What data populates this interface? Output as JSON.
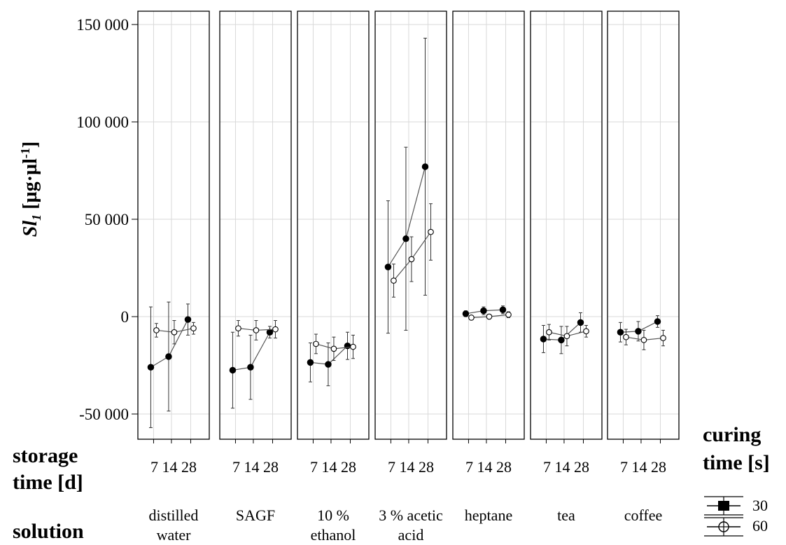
{
  "chart_data": {
    "type": "line",
    "ylabel_main": "Sl",
    "ylabel_sub": "1",
    "ylabel_unit": " [µg·µl",
    "ylabel_exp": "-1",
    "ylabel_close": "]",
    "y_ticks": [
      "150 000",
      "100 000",
      "50 000",
      "0",
      "-50 000"
    ],
    "y_tick_values": [
      150000,
      100000,
      50000,
      0,
      -50000
    ],
    "ylim": [
      -62000,
      156000
    ],
    "grid": true,
    "x": [
      7,
      14,
      28
    ],
    "x_tick_text": "7 14 28",
    "storage_label_line1": "storage",
    "storage_label_line2": "time [d]",
    "solution_label": "solution",
    "legend": {
      "title_line1": "curing",
      "title_line2": "time [s]",
      "entries": [
        {
          "label": "30",
          "marker": "filled-circle"
        },
        {
          "label": "60",
          "marker": "open-circle"
        }
      ]
    },
    "panels": [
      {
        "solution": [
          "distilled",
          "water"
        ],
        "series": [
          {
            "curing_time": "30",
            "values": [
              -26000,
              -20500,
              -1500
            ],
            "error": [
              31000,
              28000,
              8000
            ]
          },
          {
            "curing_time": "60",
            "values": [
              -7000,
              -8000,
              -6000
            ],
            "error": [
              3500,
              6000,
              3000
            ]
          }
        ]
      },
      {
        "solution": [
          "SAGF"
        ],
        "series": [
          {
            "curing_time": "30",
            "values": [
              -27500,
              -26000,
              -8000
            ],
            "error": [
              19500,
              16500,
              3000
            ]
          },
          {
            "curing_time": "60",
            "values": [
              -6000,
              -7000,
              -6500
            ],
            "error": [
              4000,
              5000,
              4500
            ]
          }
        ]
      },
      {
        "solution": [
          "10 %",
          "ethanol"
        ],
        "series": [
          {
            "curing_time": "30",
            "values": [
              -23500,
              -24500,
              -15000
            ],
            "error": [
              10000,
              11000,
              7000
            ]
          },
          {
            "curing_time": "60",
            "values": [
              -14000,
              -16500,
              -15500
            ],
            "error": [
              5000,
              6000,
              6000
            ]
          }
        ]
      },
      {
        "solution": [
          "3 % acetic",
          "acid"
        ],
        "series": [
          {
            "curing_time": "30",
            "values": [
              25500,
              40000,
              77000
            ],
            "error": [
              34000,
              47000,
              66000
            ]
          },
          {
            "curing_time": "60",
            "values": [
              18500,
              29500,
              43500
            ],
            "error": [
              8500,
              11500,
              14500
            ]
          }
        ]
      },
      {
        "solution": [
          "heptane"
        ],
        "series": [
          {
            "curing_time": "30",
            "values": [
              1500,
              3000,
              3500
            ],
            "error": [
              1500,
              2000,
              2000
            ]
          },
          {
            "curing_time": "60",
            "values": [
              -500,
              0,
              1000
            ],
            "error": [
              800,
              1000,
              1500
            ]
          }
        ]
      },
      {
        "solution": [
          "tea"
        ],
        "series": [
          {
            "curing_time": "30",
            "values": [
              -11500,
              -12000,
              -3000
            ],
            "error": [
              7000,
              7000,
              5000
            ]
          },
          {
            "curing_time": "60",
            "values": [
              -8000,
              -10000,
              -7500
            ],
            "error": [
              4000,
              5000,
              3000
            ]
          }
        ]
      },
      {
        "solution": [
          "coffee"
        ],
        "series": [
          {
            "curing_time": "30",
            "values": [
              -8000,
              -7500,
              -2500
            ],
            "error": [
              5000,
              5000,
              3000
            ]
          },
          {
            "curing_time": "60",
            "values": [
              -10500,
              -12000,
              -11000
            ],
            "error": [
              4000,
              5000,
              4000
            ]
          }
        ]
      }
    ]
  }
}
